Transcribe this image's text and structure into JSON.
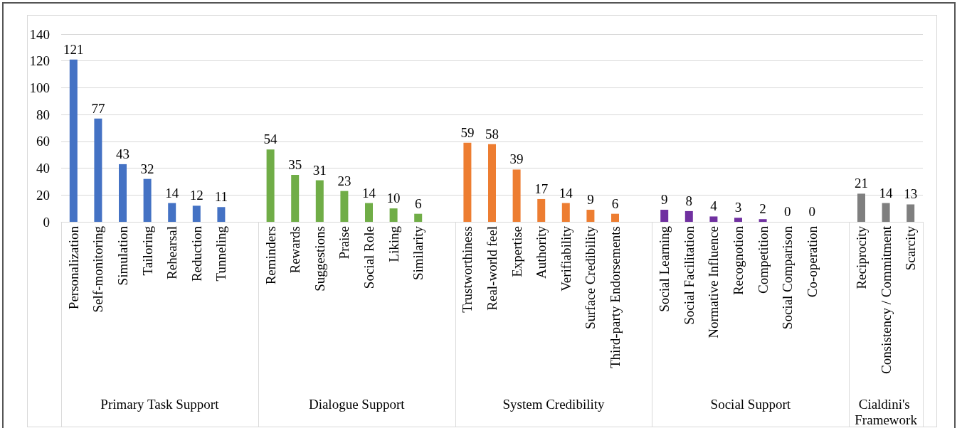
{
  "chart_data": {
    "type": "bar",
    "categories": [
      "Personalization",
      "Self-monitoring",
      "Simulation",
      "Tailoring",
      "Rehearsal",
      "Reduction",
      "Tunneling",
      null,
      "Reminders",
      "Rewards",
      "Suggestions",
      "Praise",
      "Social Role",
      "Liking",
      "Similarity",
      null,
      "Trustworthiness",
      "Real-world feel",
      "Expertise",
      "Authority",
      "Verifiability",
      "Surface Credibility",
      "Third-party Endorsements",
      null,
      "Social Learning",
      "Social Facilitation",
      "Normative Influence",
      "Recognotion",
      "Competition",
      "Social Comparison",
      "Co-operation",
      null,
      "Reciprocity",
      "Consistency / Commitment",
      "Scarcity"
    ],
    "values": [
      121,
      77,
      43,
      32,
      14,
      12,
      11,
      null,
      54,
      35,
      31,
      23,
      14,
      10,
      6,
      null,
      59,
      58,
      39,
      17,
      14,
      9,
      6,
      null,
      9,
      8,
      4,
      3,
      2,
      0,
      0,
      null,
      21,
      14,
      13
    ],
    "colors": [
      "#4472c4",
      "#4472c4",
      "#4472c4",
      "#4472c4",
      "#4472c4",
      "#4472c4",
      "#4472c4",
      null,
      "#70ad47",
      "#70ad47",
      "#70ad47",
      "#70ad47",
      "#70ad47",
      "#70ad47",
      "#70ad47",
      null,
      "#ed7d31",
      "#ed7d31",
      "#ed7d31",
      "#ed7d31",
      "#ed7d31",
      "#ed7d31",
      "#ed7d31",
      null,
      "#7030a0",
      "#7030a0",
      "#7030a0",
      "#7030a0",
      "#7030a0",
      "#7030a0",
      "#7030a0",
      null,
      "#7f7f7f",
      "#7f7f7f",
      "#7f7f7f"
    ],
    "annotations": [
      "Primary Task Support",
      "Dialogue Support",
      "System Credibility",
      "Social Support",
      "Cialdini's Framework"
    ],
    "ylim": [
      0,
      140
    ],
    "yticks": [
      0,
      20,
      40,
      60,
      80,
      100,
      120,
      140
    ],
    "grid": "y",
    "data_labels": true
  }
}
